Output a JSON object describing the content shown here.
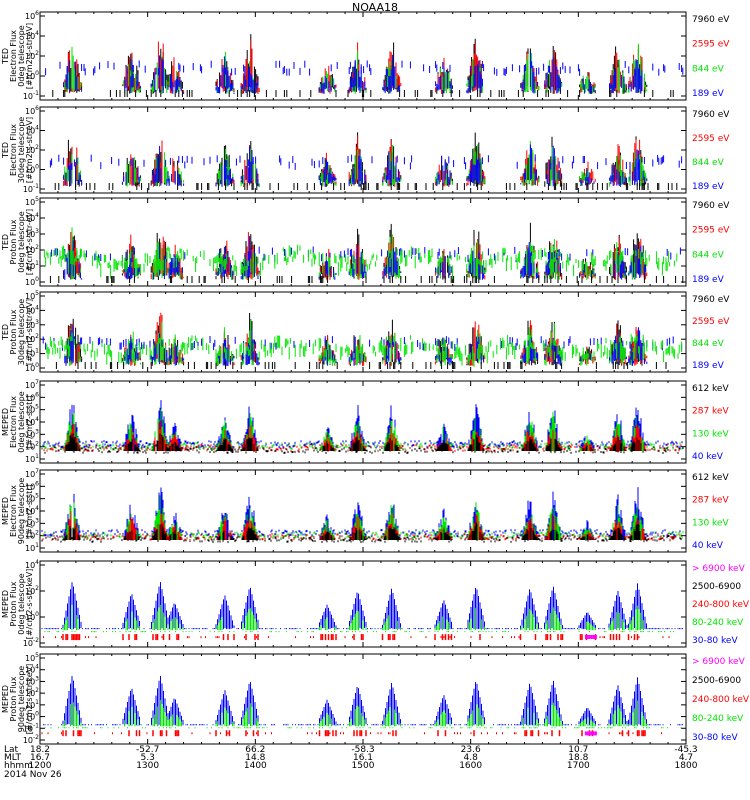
{
  "title": "NOAA18",
  "colors": {
    "black": "#000000",
    "red": "#ff0000",
    "green": "#00e600",
    "blue": "#0000ff",
    "magenta": "#ff00ff"
  },
  "panels": [
    {
      "ylabel": [
        "TED",
        "Electron Flux",
        "0deg telescope",
        "[#/cm2-s-str-eV]"
      ],
      "yticks": [
        "10^6",
        "10^4",
        "10^2",
        "10^0",
        "10^-1"
      ],
      "legend": [
        {
          "text": "7960 eV",
          "color": "black"
        },
        {
          "text": "2595 eV",
          "color": "red"
        },
        {
          "text": "844 eV",
          "color": "green"
        },
        {
          "text": "189 eV",
          "color": "blue"
        }
      ]
    },
    {
      "ylabel": [
        "TED",
        "Electron Flux",
        "30deg telescope",
        "[#/cm2-s-str-eV]"
      ],
      "yticks": [
        "10^6",
        "10^4",
        "10^2",
        "10^0",
        "10^-1"
      ],
      "legend": [
        {
          "text": "7960 eV",
          "color": "black"
        },
        {
          "text": "2595 eV",
          "color": "red"
        },
        {
          "text": "844 eV",
          "color": "green"
        },
        {
          "text": "189 eV",
          "color": "blue"
        }
      ]
    },
    {
      "ylabel": [
        "TED",
        "Proton Flux",
        "0deg telescope",
        "[#/cm2-s-str-eV]"
      ],
      "yticks": [
        "10^5",
        "10^4",
        "10^3",
        "10^2",
        "10^1",
        "10^0"
      ],
      "legend": [
        {
          "text": "7960 eV",
          "color": "black"
        },
        {
          "text": "2595 eV",
          "color": "red"
        },
        {
          "text": "844 eV",
          "color": "green"
        },
        {
          "text": "189 eV",
          "color": "blue"
        }
      ]
    },
    {
      "ylabel": [
        "TED",
        "Proton Flux",
        "30deg telescope",
        "[#/cm2-s-str-eV]"
      ],
      "yticks": [
        "10^5",
        "10^4",
        "10^3",
        "10^2",
        "10^1",
        "10^0"
      ],
      "legend": [
        {
          "text": "7960 eV",
          "color": "black"
        },
        {
          "text": "2595 eV",
          "color": "red"
        },
        {
          "text": "844 eV",
          "color": "green"
        },
        {
          "text": "189 eV",
          "color": "blue"
        }
      ]
    },
    {
      "ylabel": [
        "MEPED",
        "Electron Flux",
        "0deg telescope",
        "[#/cm2-s-str]"
      ],
      "yticks": [
        "10^7",
        "10^6",
        "10^5",
        "10^4",
        "10^3",
        "10^2",
        "10^1"
      ],
      "legend": [
        {
          "text": "612 keV",
          "color": "black"
        },
        {
          "text": "287 keV",
          "color": "red"
        },
        {
          "text": "130 keV",
          "color": "green"
        },
        {
          "text": "40 keV",
          "color": "blue"
        }
      ]
    },
    {
      "ylabel": [
        "MEPED",
        "Electron Flux",
        "90deg telescope",
        "[#/cm2-s-str]"
      ],
      "yticks": [
        "10^7",
        "10^6",
        "10^5",
        "10^4",
        "10^3",
        "10^2",
        "10^1"
      ],
      "legend": [
        {
          "text": "612 keV",
          "color": "black"
        },
        {
          "text": "287 keV",
          "color": "red"
        },
        {
          "text": "130 keV",
          "color": "green"
        },
        {
          "text": "40 keV",
          "color": "blue"
        }
      ]
    },
    {
      "ylabel": [
        "MEPED",
        "Proton Flux",
        "0deg telescope",
        "[#/cm2-s-str-keV]"
      ],
      "yticks": [
        "10^4",
        "10^2",
        "10^0",
        "10^-2"
      ],
      "legend": [
        {
          "text": "> 6900 keV",
          "color": "magenta"
        },
        {
          "text": "2500-6900",
          "color": "black"
        },
        {
          "text": "240-800 keV",
          "color": "red"
        },
        {
          "text": "80-240 keV",
          "color": "green"
        },
        {
          "text": "30-80 keV",
          "color": "blue"
        }
      ]
    },
    {
      "ylabel": [
        "MEPED",
        "Proton Flux",
        "90deg telescope",
        "[#/cm2-s-str-keV]"
      ],
      "yticks": [
        "10^5",
        "10^4",
        "10^3",
        "10^2",
        "10^1",
        "10^0",
        "10^-1",
        "10^-2"
      ],
      "legend": [
        {
          "text": "> 6900 keV",
          "color": "magenta"
        },
        {
          "text": "2500-6900",
          "color": "black"
        },
        {
          "text": "240-800 keV",
          "color": "red"
        },
        {
          "text": "80-240 keV",
          "color": "green"
        },
        {
          "text": "30-80 keV",
          "color": "blue"
        }
      ]
    }
  ],
  "xaxis": {
    "row_labels": [
      "Lat",
      "MLT",
      "hhmm"
    ],
    "ticks": [
      {
        "lat": "18.2",
        "mlt": "16.7",
        "hhmm": "1200"
      },
      {
        "lat": "-52.7",
        "mlt": "5.3",
        "hhmm": "1300"
      },
      {
        "lat": "66.2",
        "mlt": "14.8",
        "hhmm": "1400"
      },
      {
        "lat": "-58.3",
        "mlt": "16.1",
        "hhmm": "1500"
      },
      {
        "lat": "23.6",
        "mlt": "4.8",
        "hhmm": "1600"
      },
      {
        "lat": "10.7",
        "mlt": "18.8",
        "hhmm": "1700"
      },
      {
        "lat": "-45.3",
        "mlt": "4.7",
        "hhmm": "1800"
      }
    ],
    "date": "2014 Nov 26"
  },
  "chart_data": {
    "type": "line",
    "title": "NOAA18",
    "x_ticks": [
      "1200",
      "1300",
      "1400",
      "1500",
      "1600",
      "1700",
      "1800"
    ],
    "x_range": [
      "1200",
      "1800"
    ],
    "yscale": "log",
    "grid": false,
    "legend_position": "right",
    "bursts": [
      {
        "time": "1218",
        "peak": 1.0
      },
      {
        "time": "1251",
        "peak": 0.75
      },
      {
        "time": "1307",
        "peak": 1.0
      },
      {
        "time": "1315",
        "peak": 0.55
      },
      {
        "time": "1343",
        "peak": 0.7
      },
      {
        "time": "1357",
        "peak": 0.9
      },
      {
        "time": "1440",
        "peak": 0.5
      },
      {
        "time": "1457",
        "peak": 0.8
      },
      {
        "time": "1516",
        "peak": 0.85
      },
      {
        "time": "1545",
        "peak": 0.6
      },
      {
        "time": "1603",
        "peak": 0.9
      },
      {
        "time": "1633",
        "peak": 0.85
      },
      {
        "time": "1646",
        "peak": 0.9
      },
      {
        "time": "1705",
        "peak": 0.35
      },
      {
        "time": "1722",
        "peak": 0.8
      },
      {
        "time": "1733",
        "peak": 0.95
      }
    ]
  }
}
